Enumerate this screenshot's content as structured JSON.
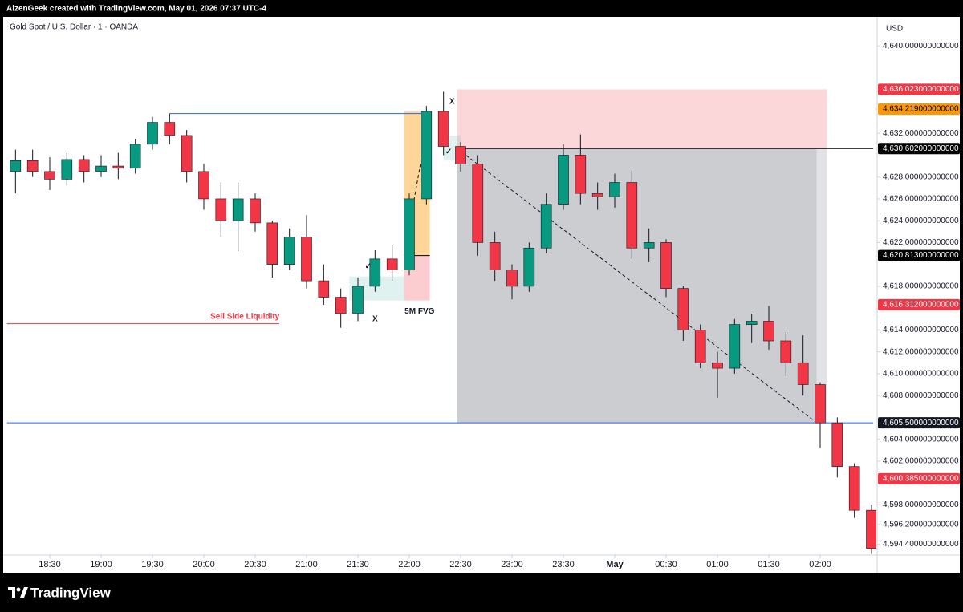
{
  "header": {
    "credit": "AizenGeek created with TradingView.com, May 01, 2026 07:37 UTC-4",
    "brand": "TradingView"
  },
  "chart_data": {
    "type": "candlestick",
    "title": "Gold Spot / U.S. Dollar · 1 · OANDA",
    "y_axis_label": "USD",
    "up_color": "#089981",
    "down_color": "#f23645",
    "grid": false,
    "ylim": [
      4593.4,
      4642.66
    ],
    "yticks": [
      {
        "value": 4640,
        "label": "4,640.000000000000"
      },
      {
        "value": 4632,
        "label": "4,632.000000000000"
      },
      {
        "value": 4628,
        "label": "4,628.000000000000"
      },
      {
        "value": 4626,
        "label": "4,626.000000000000"
      },
      {
        "value": 4624,
        "label": "4,624.000000000000"
      },
      {
        "value": 4622,
        "label": "4,622.000000000000"
      },
      {
        "value": 4618,
        "label": "4,618.000000000000"
      },
      {
        "value": 4614,
        "label": "4,614.000000000000"
      },
      {
        "value": 4612,
        "label": "4,612.000000000000"
      },
      {
        "value": 4610,
        "label": "4,610.000000000000"
      },
      {
        "value": 4608,
        "label": "4,608.000000000000"
      },
      {
        "value": 4604,
        "label": "4,604.000000000000"
      },
      {
        "value": 4602,
        "label": "4,602.000000000000"
      },
      {
        "value": 4598,
        "label": "4,598.000000000000"
      },
      {
        "value": 4596.2,
        "label": "4,596.200000000000"
      },
      {
        "value": 4594.4,
        "label": "4,594.400000000000"
      }
    ],
    "xticks": [
      "18:30",
      "19:00",
      "19:30",
      "20:00",
      "20:30",
      "21:00",
      "21:30",
      "22:00",
      "22:30",
      "23:00",
      "23:30",
      {
        "value": "00:00",
        "label": "May"
      },
      "00:30",
      "01:00",
      "01:30",
      "02:00"
    ],
    "x": [
      "18:10",
      "18:20",
      "18:30",
      "18:40",
      "18:50",
      "19:00",
      "19:10",
      "19:20",
      "19:30",
      "19:40",
      "19:50",
      "20:00",
      "20:10",
      "20:20",
      "20:30",
      "20:40",
      "20:50",
      "21:00",
      "21:10",
      "21:20",
      "21:30",
      "21:40",
      "21:50",
      "22:00",
      "22:10",
      "22:20",
      "22:30",
      "22:40",
      "22:50",
      "23:00",
      "23:10",
      "23:20",
      "23:30",
      "23:40",
      "23:50",
      "00:00",
      "00:10",
      "00:20",
      "00:30",
      "00:40",
      "00:50",
      "01:00",
      "01:10",
      "01:20",
      "01:30",
      "01:40",
      "01:50",
      "02:00",
      "02:10",
      "02:20",
      "02:30"
    ],
    "open": [
      4628.5,
      4629.5,
      4628.5,
      4627.8,
      4629.6,
      4628.5,
      4629,
      4628.8,
      4631,
      4633,
      4631.8,
      4628.5,
      4626,
      4624,
      4626,
      4623.8,
      4620,
      4622.5,
      4618.5,
      4617,
      4615.5,
      4618,
      4620.5,
      4619.5,
      4626,
      4634,
      4630.8,
      4629.2,
      4622,
      4619.5,
      4618,
      4621.5,
      4625.5,
      4630,
      4626.5,
      4626.2,
      4627.5,
      4621.5,
      4622,
      4617.8,
      4614,
      4611,
      4610.5,
      4614.5,
      4614.8,
      4613,
      4611,
      4609,
      4605.5,
      4601.5,
      4597.5
    ],
    "high": [
      4630.5,
      4630.5,
      4629.8,
      4630.2,
      4630,
      4630,
      4630.2,
      4631.5,
      4633.5,
      4633.8,
      4632.3,
      4629.2,
      4627.5,
      4627.5,
      4626.5,
      4624,
      4623.3,
      4624.5,
      4620,
      4617.8,
      4618.8,
      4621.3,
      4621.8,
      4626.5,
      4634.5,
      4635.8,
      4631.2,
      4630,
      4623,
      4620,
      4622,
      4626.5,
      4631,
      4631.9,
      4627.5,
      4628.3,
      4628.6,
      4623.3,
      4622.3,
      4618,
      4614.5,
      4612,
      4615,
      4615.5,
      4616.2,
      4613.8,
      4613.5,
      4609.2,
      4606,
      4601.8,
      4598
    ],
    "low": [
      4626.5,
      4628,
      4626.8,
      4627.2,
      4627.5,
      4628,
      4627.8,
      4628.3,
      4630.5,
      4631,
      4627.5,
      4625,
      4622.5,
      4621.2,
      4623,
      4618.8,
      4619.5,
      4617.8,
      4616.3,
      4614.2,
      4614.8,
      4617.5,
      4618.5,
      4619,
      4625.5,
      4630,
      4628.5,
      4620.8,
      4618.5,
      4616.8,
      4617.5,
      4621,
      4625,
      4625.5,
      4625,
      4625.2,
      4620.5,
      4620.2,
      4617,
      4613,
      4610.5,
      4607.8,
      4610,
      4612.8,
      4612.2,
      4609.8,
      4608,
      4603.2,
      4600.5,
      4596.8,
      4593.5
    ],
    "close": [
      4629.5,
      4628.5,
      4627.8,
      4629.6,
      4628.5,
      4629,
      4628.8,
      4631,
      4633,
      4631.8,
      4628.5,
      4626,
      4624,
      4626,
      4623.8,
      4620,
      4622.5,
      4618.5,
      4617,
      4615.5,
      4618,
      4620.5,
      4619.5,
      4626,
      4634,
      4630.8,
      4629.2,
      4622,
      4619.5,
      4618,
      4621.5,
      4625.5,
      4630,
      4626.5,
      4626.2,
      4627.5,
      4621.5,
      4622,
      4617.8,
      4614,
      4611,
      4610.5,
      4614.5,
      4614.8,
      4613,
      4611,
      4609,
      4605.5,
      4601.5,
      4597.5,
      4594
    ],
    "price_labels": [
      {
        "value": 4636.023,
        "label": "4,636.023000000000",
        "color": "#f23645",
        "text_color": "#ffffff"
      },
      {
        "value": 4634.219,
        "label": "4,634.219000000000",
        "color": "#ff9800",
        "text_color": "#000000"
      },
      {
        "value": 4630.602,
        "label": "4,630.602000000000",
        "color": "#000000",
        "text_color": "#ffffff"
      },
      {
        "value": 4620.813,
        "label": "4,620.813000000000",
        "color": "#000000",
        "text_color": "#ffffff"
      },
      {
        "value": 4616.312,
        "label": "4,616.312000000000",
        "color": "#f23645",
        "text_color": "#ffffff"
      },
      {
        "value": 4605.5,
        "label": "4,605.500000000000",
        "color": "#131722",
        "text_color": "#ffffff"
      },
      {
        "value": 4600.385,
        "label": "4,600.385000000000",
        "color": "#f23645",
        "text_color": "#ffffff"
      }
    ],
    "boxes": [
      {
        "top": 4636.023,
        "bottom": 4630.602,
        "from": "22:28",
        "to": "02:04",
        "color": "#f23645",
        "opacity": 0.2
      },
      {
        "top": 4630.602,
        "bottom": 4605.5,
        "from": "22:28",
        "to": "01:58",
        "color": "#787b86",
        "opacity": 0.38
      },
      {
        "top": 4630.602,
        "bottom": 4605.5,
        "from": "01:58",
        "to": "02:04",
        "color": "#b2b5be",
        "opacity": 0.38
      },
      {
        "top": 4634,
        "bottom": 4620.813,
        "from": "21:57",
        "to": "22:12",
        "color": "#ff9800",
        "opacity": 0.4
      },
      {
        "top": 4620.813,
        "bottom": 4616.7,
        "from": "21:57",
        "to": "22:12",
        "color": "#f23645",
        "opacity": 0.25
      },
      {
        "top": 4618.9,
        "bottom": 4616.7,
        "from": "21:25",
        "to": "21:57",
        "color": "#26a69a",
        "opacity": 0.15
      },
      {
        "top": 4631.8,
        "bottom": 4629.5,
        "from": "22:20",
        "to": "22:30",
        "color": "#26a69a",
        "opacity": 0.15
      }
    ],
    "lines": [
      {
        "price": 4633.8,
        "from": "19:40",
        "to": "22:10",
        "color": "#2962ff"
      },
      {
        "price": 4614.57,
        "from": "18:05",
        "to": "20:44",
        "color": "#f23645"
      },
      {
        "price": 4605.5,
        "from": "18:05",
        "to": "02:31",
        "color": "#2962ff"
      },
      {
        "price": 4620.813,
        "from": "21:57",
        "to": "22:12",
        "color": "#000000"
      },
      {
        "price": 4630.602,
        "from": "22:28",
        "to": "02:31",
        "color": "#000000"
      }
    ],
    "dashed": [
      {
        "from": "22:28",
        "from_price": 4630.602,
        "to": "01:58",
        "to_price": 4605.5
      },
      {
        "from": "21:57",
        "from_price": 4620.813,
        "to": "22:12",
        "to_price": 4634
      }
    ],
    "labels": [
      {
        "text": "Sell Side Liquidity",
        "time": "20:24",
        "price": 4615.2,
        "color": "#f23645"
      },
      {
        "text": "5M FVG",
        "time": "22:06",
        "price": 4615.7,
        "color": "#131722"
      },
      {
        "text": "✓",
        "time": "21:36",
        "price": 4619.8,
        "color": "#131722"
      },
      {
        "text": "X",
        "time": "21:40",
        "price": 4615.0,
        "color": "#131722"
      },
      {
        "text": "✓",
        "time": "22:23",
        "price": 4630.3,
        "color": "#131722"
      },
      {
        "text": "X",
        "time": "22:25",
        "price": 4634.9,
        "color": "#131722"
      }
    ]
  }
}
